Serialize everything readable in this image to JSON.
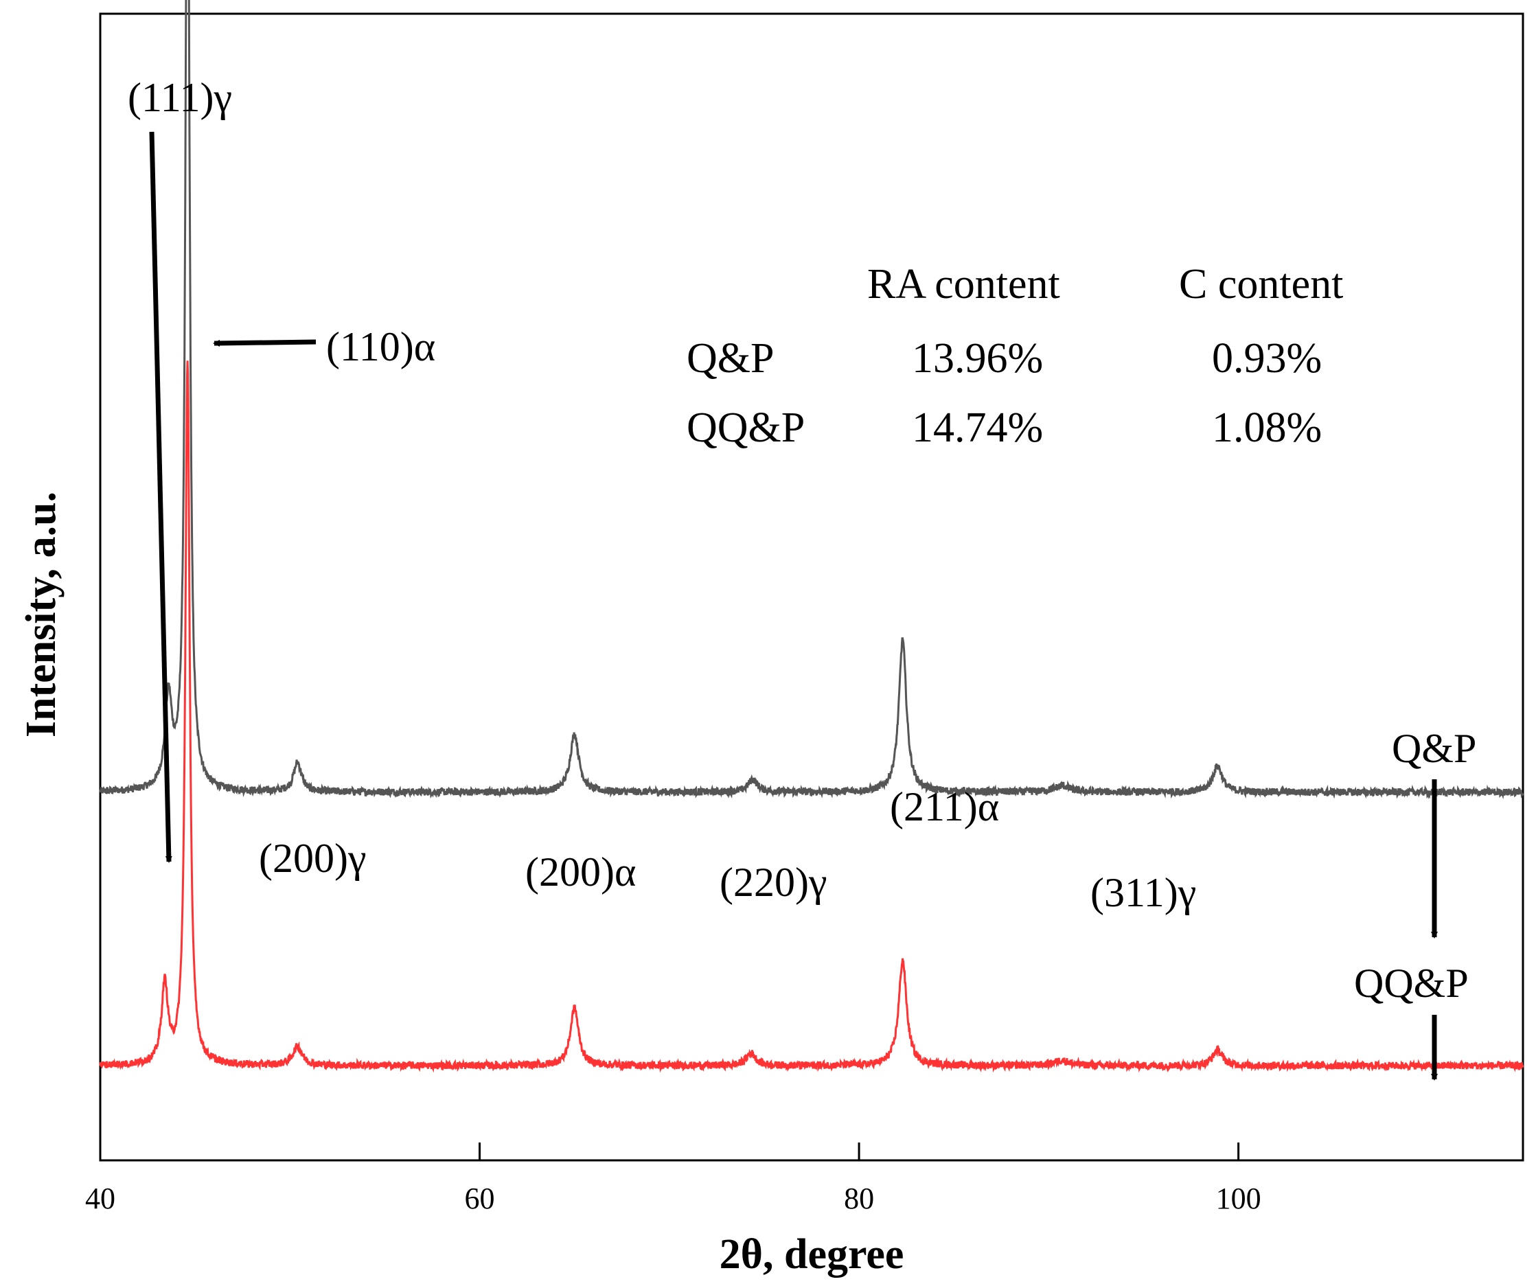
{
  "chart_data": {
    "type": "line",
    "title": "",
    "xlabel": "2θ, degree",
    "ylabel": "Intensity, a.u.",
    "xlim": [
      40,
      115
    ],
    "ylim": [
      -0.9,
      10.0
    ],
    "xticks": [
      40,
      60,
      80,
      100
    ],
    "yticks": [],
    "grid": false,
    "series": [
      {
        "name": "Q&P",
        "color": "#555555",
        "baseline": 2.6,
        "peaks": [
          {
            "x": 43.6,
            "h": 0.85,
            "w": 0.22
          },
          {
            "x": 44.6,
            "h": 10.3,
            "w": 0.13
          },
          {
            "x": 50.4,
            "h": 0.28,
            "w": 0.25
          },
          {
            "x": 65.0,
            "h": 0.55,
            "w": 0.28
          },
          {
            "x": 74.4,
            "h": 0.12,
            "w": 0.3
          },
          {
            "x": 82.3,
            "h": 1.45,
            "w": 0.24
          },
          {
            "x": 90.7,
            "h": 0.06,
            "w": 0.5
          },
          {
            "x": 98.9,
            "h": 0.25,
            "w": 0.3
          }
        ]
      },
      {
        "name": "QQ&P",
        "color": "#ff3333",
        "baseline": 0.0,
        "peaks": [
          {
            "x": 43.4,
            "h": 0.75,
            "w": 0.2
          },
          {
            "x": 44.6,
            "h": 6.7,
            "w": 0.14
          },
          {
            "x": 50.4,
            "h": 0.18,
            "w": 0.3
          },
          {
            "x": 65.0,
            "h": 0.55,
            "w": 0.26
          },
          {
            "x": 74.3,
            "h": 0.12,
            "w": 0.3
          },
          {
            "x": 82.3,
            "h": 1.0,
            "w": 0.25
          },
          {
            "x": 90.7,
            "h": 0.05,
            "w": 0.5
          },
          {
            "x": 98.9,
            "h": 0.15,
            "w": 0.3
          }
        ]
      }
    ],
    "annotations": {
      "peak_labels": [
        "(111)γ",
        "(110)α",
        "(200)γ",
        "(200)α",
        "(220)γ",
        "(211)α",
        "(311)γ"
      ],
      "series_labels": [
        "Q&P",
        "QQ&P"
      ]
    },
    "table": {
      "headers": [
        "",
        "RA content",
        "C content"
      ],
      "rows": [
        [
          "Q&P",
          "13.96%",
          "0.93%"
        ],
        [
          "QQ&P",
          "14.74%",
          "1.08%"
        ]
      ]
    }
  }
}
